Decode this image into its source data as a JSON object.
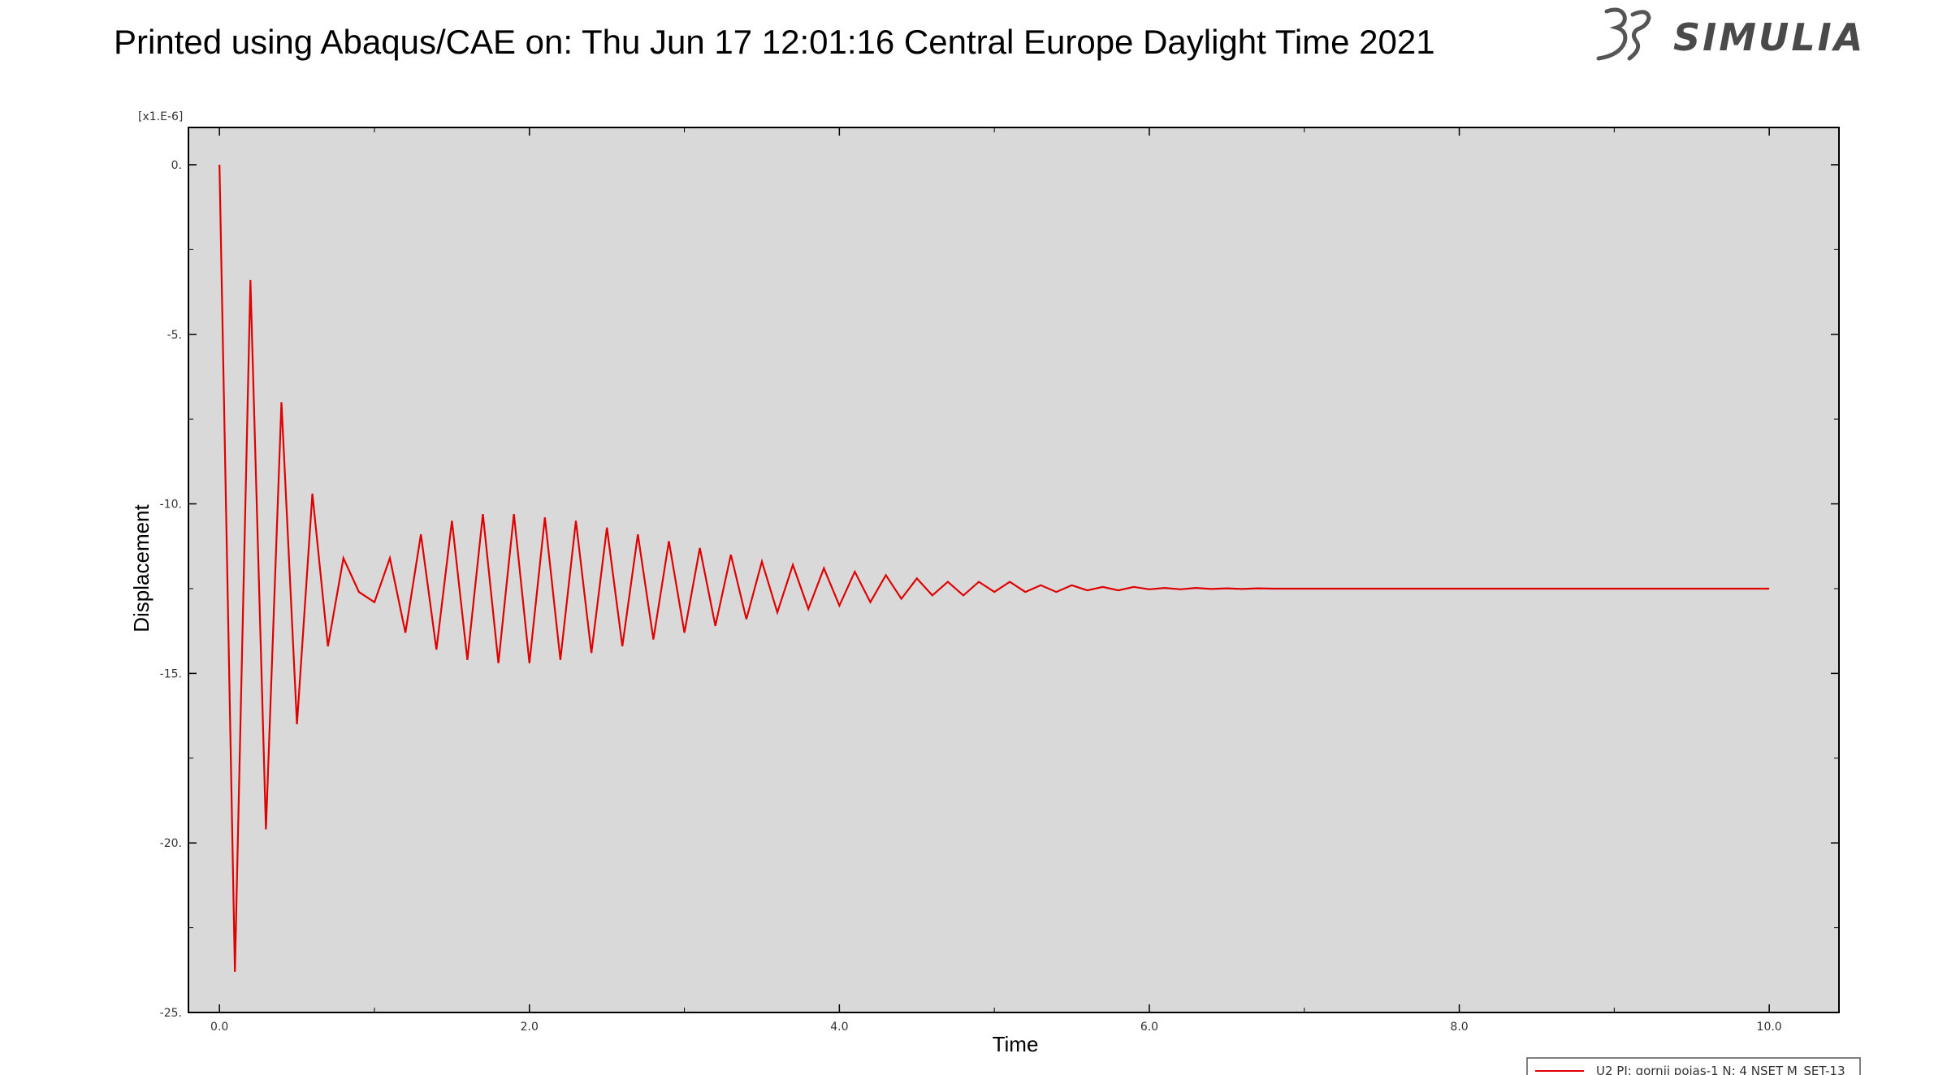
{
  "header": {
    "title": "Printed using Abaqus/CAE on: Thu Jun 17 12:01:16 Central Europe Daylight Time 2021",
    "logo_text": "SIMULIA"
  },
  "colors": {
    "plot_background": "#d9d9d9",
    "series": "#e00000",
    "frame": "#000000"
  },
  "chart_data": {
    "type": "line",
    "xlabel": "Time",
    "ylabel": "Displacement",
    "y_multiplier_label": "[x1.E-6]",
    "xlim": [
      -0.2,
      10.45
    ],
    "ylim": [
      -25,
      1.1
    ],
    "x_ticks": [
      0,
      2,
      4,
      6,
      8,
      10
    ],
    "x_tick_labels": [
      "0.0",
      "2.0",
      "4.0",
      "6.0",
      "8.0",
      "10.0"
    ],
    "y_ticks": [
      0,
      -5,
      -10,
      -15,
      -20,
      -25
    ],
    "y_tick_labels": [
      "0.",
      "-5.",
      "-10.",
      "-15.",
      "-20.",
      "-25."
    ],
    "grid": false,
    "legend_position": "bottom-right outside",
    "series": [
      {
        "name": "U2 PI: gornji pojas-1 N: 4 NSET M_SET-13",
        "x": [
          0.0,
          0.1,
          0.2,
          0.3,
          0.4,
          0.5,
          0.6,
          0.7,
          0.8,
          0.9,
          1.0,
          1.1,
          1.2,
          1.3,
          1.4,
          1.5,
          1.6,
          1.7,
          1.8,
          1.9,
          2.0,
          2.1,
          2.2,
          2.3,
          2.4,
          2.5,
          2.6,
          2.7,
          2.8,
          2.9,
          3.0,
          3.1,
          3.2,
          3.3,
          3.4,
          3.5,
          3.6,
          3.7,
          3.8,
          3.9,
          4.0,
          4.1,
          4.2,
          4.3,
          4.4,
          4.5,
          4.6,
          4.7,
          4.8,
          4.9,
          5.0,
          5.1,
          5.2,
          5.3,
          5.4,
          5.5,
          5.6,
          5.7,
          5.8,
          5.9,
          6.0,
          6.1,
          6.2,
          6.3,
          6.4,
          6.5,
          6.6,
          6.7,
          6.8,
          6.9,
          7.0,
          7.1,
          7.2,
          7.3,
          7.4,
          7.5,
          7.6,
          7.7,
          7.8,
          7.9,
          8.0,
          8.1,
          8.2,
          8.3,
          8.4,
          8.5,
          8.6,
          8.7,
          8.8,
          8.9,
          9.0,
          9.1,
          9.2,
          9.3,
          9.4,
          9.5,
          9.6,
          9.7,
          9.8,
          9.9,
          10.0
        ],
        "y": [
          0.0,
          -23.8,
          -3.4,
          -19.6,
          -7.0,
          -16.5,
          -9.7,
          -14.2,
          -11.6,
          -12.6,
          -12.9,
          -11.6,
          -13.8,
          -10.9,
          -14.3,
          -10.5,
          -14.6,
          -10.3,
          -14.7,
          -10.3,
          -14.7,
          -10.4,
          -14.6,
          -10.5,
          -14.4,
          -10.7,
          -14.2,
          -10.9,
          -14.0,
          -11.1,
          -13.8,
          -11.3,
          -13.6,
          -11.5,
          -13.4,
          -11.7,
          -13.2,
          -11.8,
          -13.1,
          -11.9,
          -13.0,
          -12.0,
          -12.9,
          -12.1,
          -12.8,
          -12.2,
          -12.7,
          -12.3,
          -12.7,
          -12.3,
          -12.6,
          -12.3,
          -12.6,
          -12.4,
          -12.6,
          -12.4,
          -12.55,
          -12.45,
          -12.55,
          -12.45,
          -12.52,
          -12.48,
          -12.52,
          -12.48,
          -12.51,
          -12.49,
          -12.51,
          -12.49,
          -12.5,
          -12.5,
          -12.5,
          -12.5,
          -12.5,
          -12.5,
          -12.5,
          -12.5,
          -12.5,
          -12.5,
          -12.5,
          -12.5,
          -12.5,
          -12.5,
          -12.5,
          -12.5,
          -12.5,
          -12.5,
          -12.5,
          -12.5,
          -12.5,
          -12.5,
          -12.5,
          -12.5,
          -12.5,
          -12.5,
          -12.5,
          -12.5,
          -12.5,
          -12.5,
          -12.5,
          -12.5,
          -12.5
        ]
      }
    ]
  }
}
